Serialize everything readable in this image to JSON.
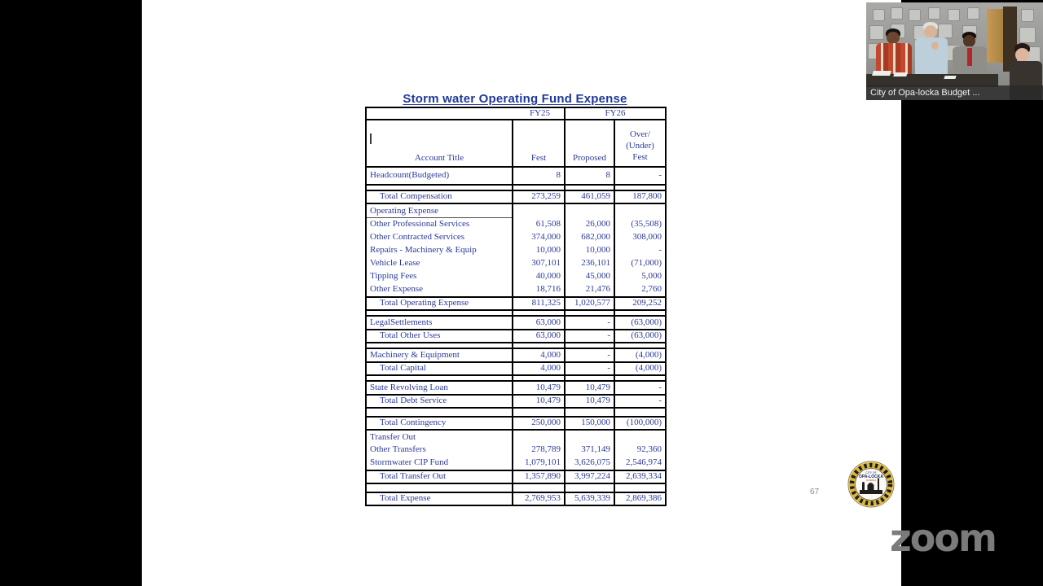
{
  "meeting": {
    "video_caption": "City of Opa-locka Budget ...",
    "watermark": "zoom"
  },
  "slide": {
    "title": "Storm water Operating Fund Expense",
    "page_number": "67",
    "seal": {
      "line1": "CITY OF",
      "line2": "OPA-LOCKA",
      "line3": "FLORIDA"
    },
    "colors": {
      "text": "#2b3a98",
      "title": "#21399b",
      "border": "#000000"
    },
    "table": {
      "col_groups": {
        "fy25": "FY25",
        "fy26": "FY26"
      },
      "headers": {
        "account": "Account Title",
        "fest": "Fest",
        "proposed": "Proposed",
        "over": "Over/ (Under) Fest"
      },
      "rows": [
        {
          "style": "headcount",
          "label": "Headcount(Budgeted)",
          "fest": "8",
          "proposed": "8",
          "over": "-"
        },
        {
          "style": "gap",
          "label": "",
          "fest": "",
          "proposed": "",
          "over": ""
        },
        {
          "style": "total",
          "label": "Total Compensation",
          "fest": "273,259",
          "proposed": "461,059",
          "over": "187,800"
        },
        {
          "style": "section-u",
          "label": "Operating Expense",
          "fest": "",
          "proposed": "",
          "over": ""
        },
        {
          "style": "detail",
          "label": "Other Professional Services",
          "fest": "61,508",
          "proposed": "26,000",
          "over": "(35,508)"
        },
        {
          "style": "detail",
          "label": "Other Contracted Services",
          "fest": "374,000",
          "proposed": "682,000",
          "over": "308,000"
        },
        {
          "style": "detail",
          "label": "Repairs - Machinery & Equip",
          "fest": "10,000",
          "proposed": "10,000",
          "over": "-"
        },
        {
          "style": "detail",
          "label": "Vehicle Lease",
          "fest": "307,101",
          "proposed": "236,101",
          "over": "(71,000)"
        },
        {
          "style": "detail",
          "label": "Tipping Fees",
          "fest": "40,000",
          "proposed": "45,000",
          "over": "5,000"
        },
        {
          "style": "detail",
          "label": "Other Expense",
          "fest": "18,716",
          "proposed": "21,476",
          "over": "2,760"
        },
        {
          "style": "total",
          "label": "Total Operating Expense",
          "fest": "811,325",
          "proposed": "1,020,577",
          "over": "209,252"
        },
        {
          "style": "gap",
          "label": "",
          "fest": "",
          "proposed": "",
          "over": ""
        },
        {
          "style": "item",
          "label": "LegalSettlements",
          "fest": "63,000",
          "proposed": "-",
          "over": "(63,000)"
        },
        {
          "style": "total",
          "label": "Total Other Uses",
          "fest": "63,000",
          "proposed": "-",
          "over": "(63,000)"
        },
        {
          "style": "gap",
          "label": "",
          "fest": "",
          "proposed": "",
          "over": ""
        },
        {
          "style": "item",
          "label": "Machinery & Equipment",
          "fest": "4,000",
          "proposed": "-",
          "over": "(4,000)"
        },
        {
          "style": "total",
          "label": "Total Capital",
          "fest": "4,000",
          "proposed": "-",
          "over": "(4,000)"
        },
        {
          "style": "gap",
          "label": "",
          "fest": "",
          "proposed": "",
          "over": ""
        },
        {
          "style": "item",
          "label": "State Revolving Loan",
          "fest": "10,479",
          "proposed": "10,479",
          "over": "-"
        },
        {
          "style": "total",
          "label": "Total Debt Service",
          "fest": "10,479",
          "proposed": "10,479",
          "over": "-"
        },
        {
          "style": "spacer",
          "label": "",
          "fest": "",
          "proposed": "",
          "over": ""
        },
        {
          "style": "total",
          "label": "Total Contingency",
          "fest": "250,000",
          "proposed": "150,000",
          "over": "(100,000)"
        },
        {
          "style": "section",
          "label": "Transfer Out",
          "fest": "",
          "proposed": "",
          "over": ""
        },
        {
          "style": "detail",
          "label": "Other Transfers",
          "fest": "278,789",
          "proposed": "371,149",
          "over": "92,360"
        },
        {
          "style": "detail",
          "label": "Stormwater CIP Fund",
          "fest": "1,079,101",
          "proposed": "3,626,075",
          "over": "2,546,974"
        },
        {
          "style": "total",
          "label": "Total Transfer Out",
          "fest": "1,357,890",
          "proposed": "3,997,224",
          "over": "2,639,334"
        },
        {
          "style": "spacer",
          "label": "",
          "fest": "",
          "proposed": "",
          "over": ""
        },
        {
          "style": "total",
          "label": "Total Expense",
          "fest": "2,769,953",
          "proposed": "5,639,339",
          "over": "2,869,386"
        }
      ]
    }
  }
}
